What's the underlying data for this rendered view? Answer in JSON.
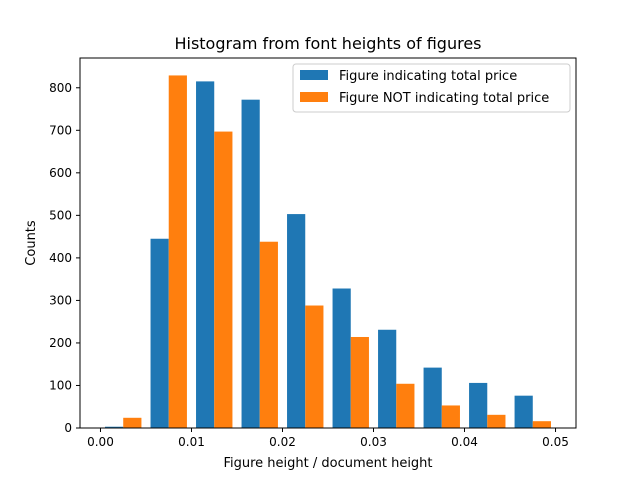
{
  "chart_data": {
    "type": "bar",
    "title": "Histogram from font heights of figures",
    "xlabel": "Figure height / document height",
    "ylabel": "Counts",
    "xlim": [
      -0.00225,
      0.05225
    ],
    "ylim": [
      0,
      870
    ],
    "xticks": [
      0.0,
      0.01,
      0.02,
      0.03,
      0.04,
      0.05
    ],
    "xtick_labels": [
      "0.00",
      "0.01",
      "0.02",
      "0.03",
      "0.04",
      "0.05"
    ],
    "yticks": [
      0,
      100,
      200,
      300,
      400,
      500,
      600,
      700,
      800
    ],
    "ytick_labels": [
      "0",
      "100",
      "200",
      "300",
      "400",
      "500",
      "600",
      "700",
      "800"
    ],
    "bin_edges": [
      0.0,
      0.005,
      0.01,
      0.015,
      0.02,
      0.025,
      0.03,
      0.035,
      0.04,
      0.045,
      0.05
    ],
    "legend_position": "top-right",
    "grid": false,
    "series": [
      {
        "name": "Figure indicating total price",
        "color": "#1f77b4",
        "values": [
          3,
          445,
          815,
          772,
          503,
          328,
          231,
          142,
          106,
          76
        ]
      },
      {
        "name": "Figure NOT indicating total price",
        "color": "#ff7f0e",
        "values": [
          24,
          829,
          697,
          438,
          288,
          214,
          104,
          53,
          31,
          16
        ]
      }
    ]
  }
}
